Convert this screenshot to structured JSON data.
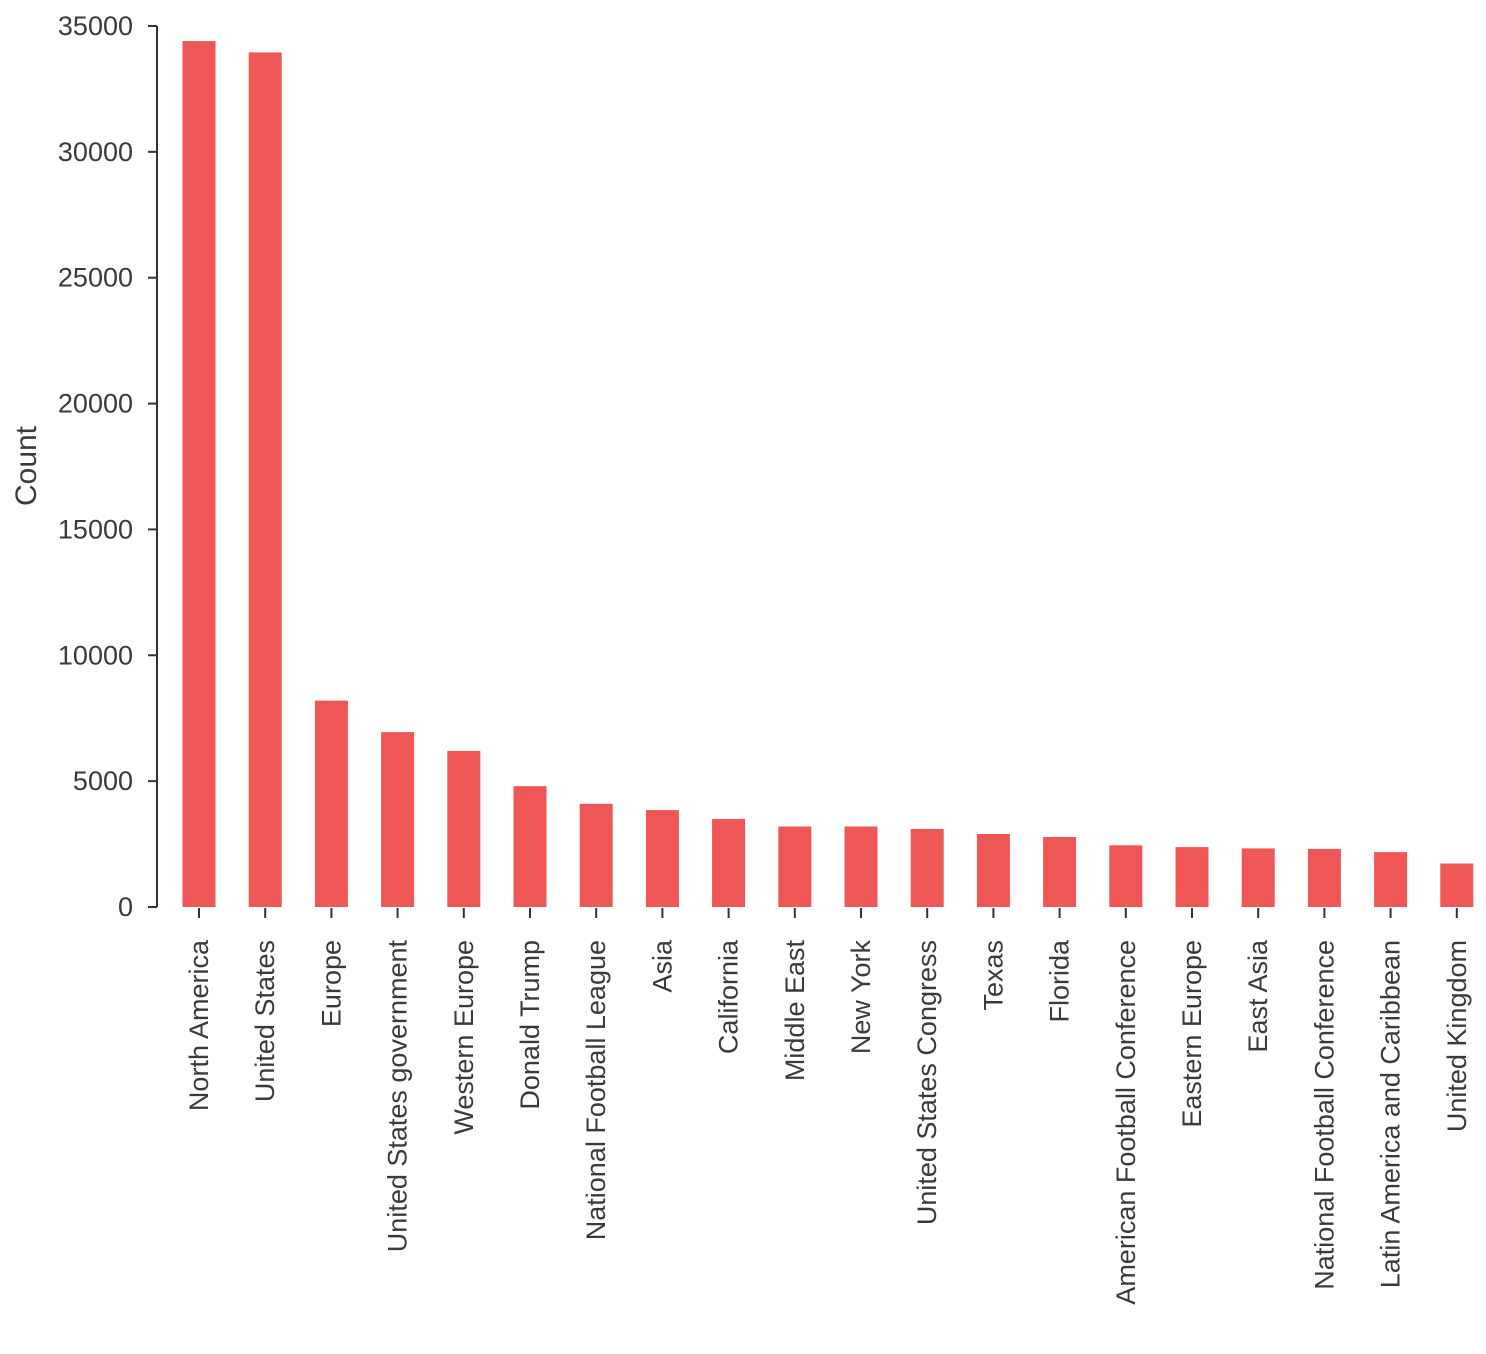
{
  "chart_data": {
    "type": "bar",
    "title": "",
    "xlabel": "",
    "ylabel": "Count",
    "ylim": [
      0,
      35000
    ],
    "yticks": [
      0,
      5000,
      10000,
      15000,
      20000,
      25000,
      30000,
      35000
    ],
    "grid": false,
    "legend": "none",
    "bar_color": "#ef5656",
    "categories": [
      "North America",
      "United States",
      "Europe",
      "United States government",
      "Western Europe",
      "Donald Trump",
      "National Football League",
      "Asia",
      "California",
      "Middle East",
      "New York",
      "United States Congress",
      "Texas",
      "Florida",
      "American Football Conference",
      "Eastern Europe",
      "East Asia",
      "National Football Conference",
      "Latin America and Caribbean",
      "United Kingdom"
    ],
    "values": [
      34400,
      33950,
      8200,
      6950,
      6200,
      4800,
      4100,
      3850,
      3500,
      3200,
      3200,
      3100,
      2900,
      2780,
      2450,
      2380,
      2330,
      2310,
      2180,
      1730
    ]
  }
}
